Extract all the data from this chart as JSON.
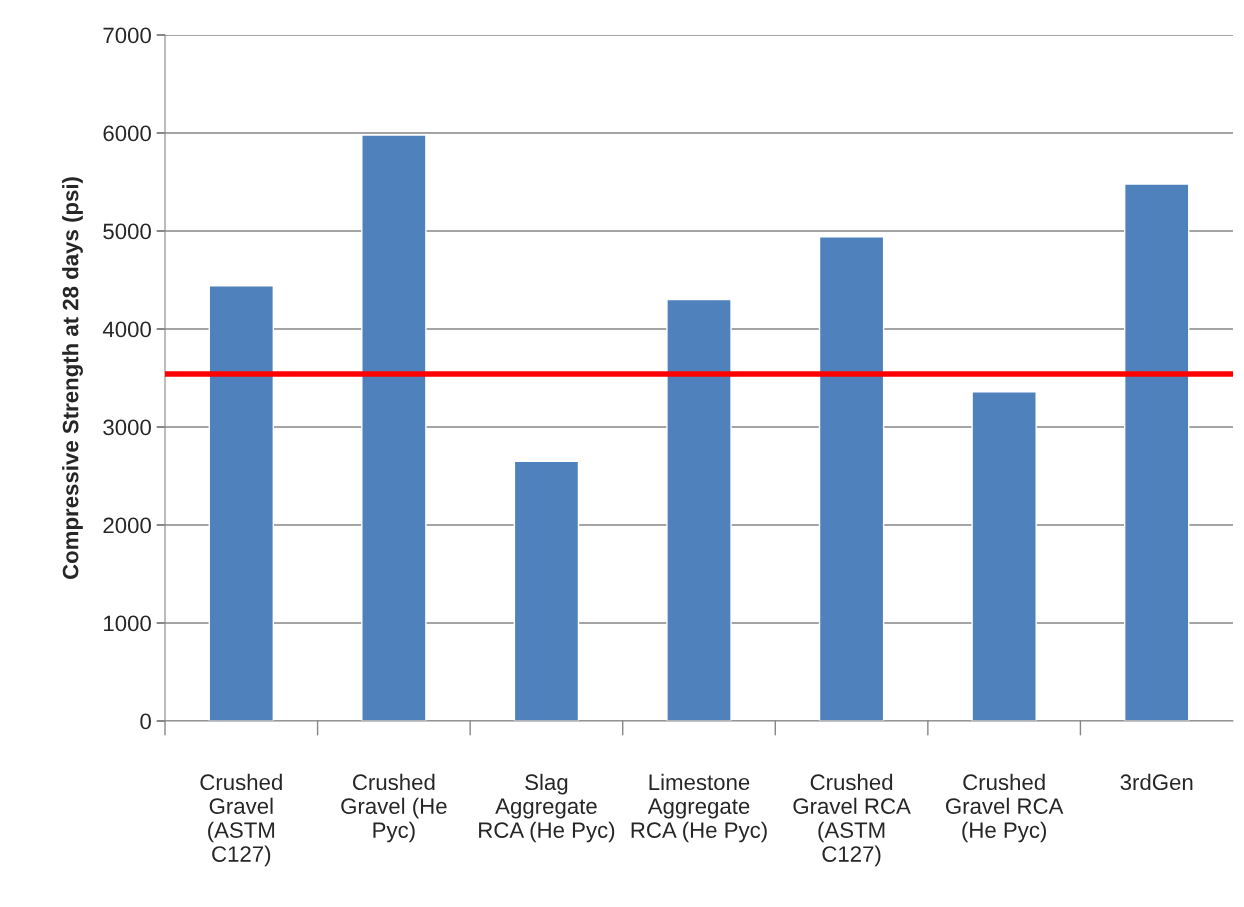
{
  "chart_data": {
    "type": "bar",
    "ylabel": "Compressive Strength at 28 days (psi)",
    "categories": [
      "Crushed\nGravel\n(ASTM\nC127)",
      "Crushed\nGravel (He\nPyc)",
      "Slag\nAggregate\nRCA (He Pyc)",
      "Limestone\nAggregate\nRCA (He Pyc)",
      "Crushed\nGravel RCA\n(ASTM\nC127)",
      "Crushed\nGravel RCA\n(He Pyc)",
      "3rdGen"
    ],
    "values": [
      4440,
      5980,
      2650,
      4300,
      4940,
      3360,
      5480
    ],
    "color": "#4f81bd",
    "ylim": [
      0,
      7000
    ],
    "yticks": [
      0,
      1000,
      2000,
      3000,
      4000,
      5000,
      6000,
      7000
    ],
    "grid": "y",
    "ref_lines": [
      {
        "axis": "y",
        "value": 3540,
        "color": "#ff0000"
      }
    ]
  }
}
